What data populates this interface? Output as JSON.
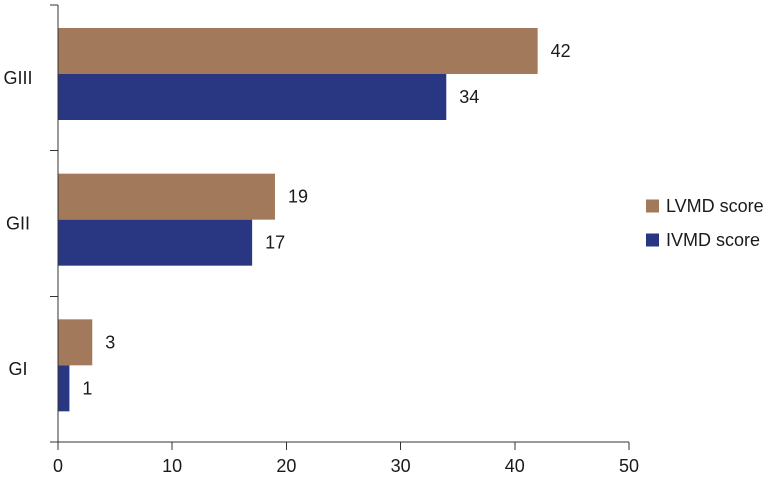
{
  "chart_data": {
    "type": "bar",
    "orientation": "horizontal",
    "categories": [
      "GIII",
      "GII",
      "GI"
    ],
    "series": [
      {
        "name": "LVMD score",
        "values": [
          42,
          19,
          3
        ],
        "color": "#A27A5B"
      },
      {
        "name": "IVMD score",
        "values": [
          34,
          17,
          1
        ],
        "color": "#293681"
      }
    ],
    "xlim": [
      0,
      50
    ],
    "xticks": [
      0,
      10,
      20,
      30,
      40,
      50
    ],
    "xlabel": "",
    "ylabel": "",
    "title": "",
    "grid": false,
    "legend_position": "right"
  }
}
